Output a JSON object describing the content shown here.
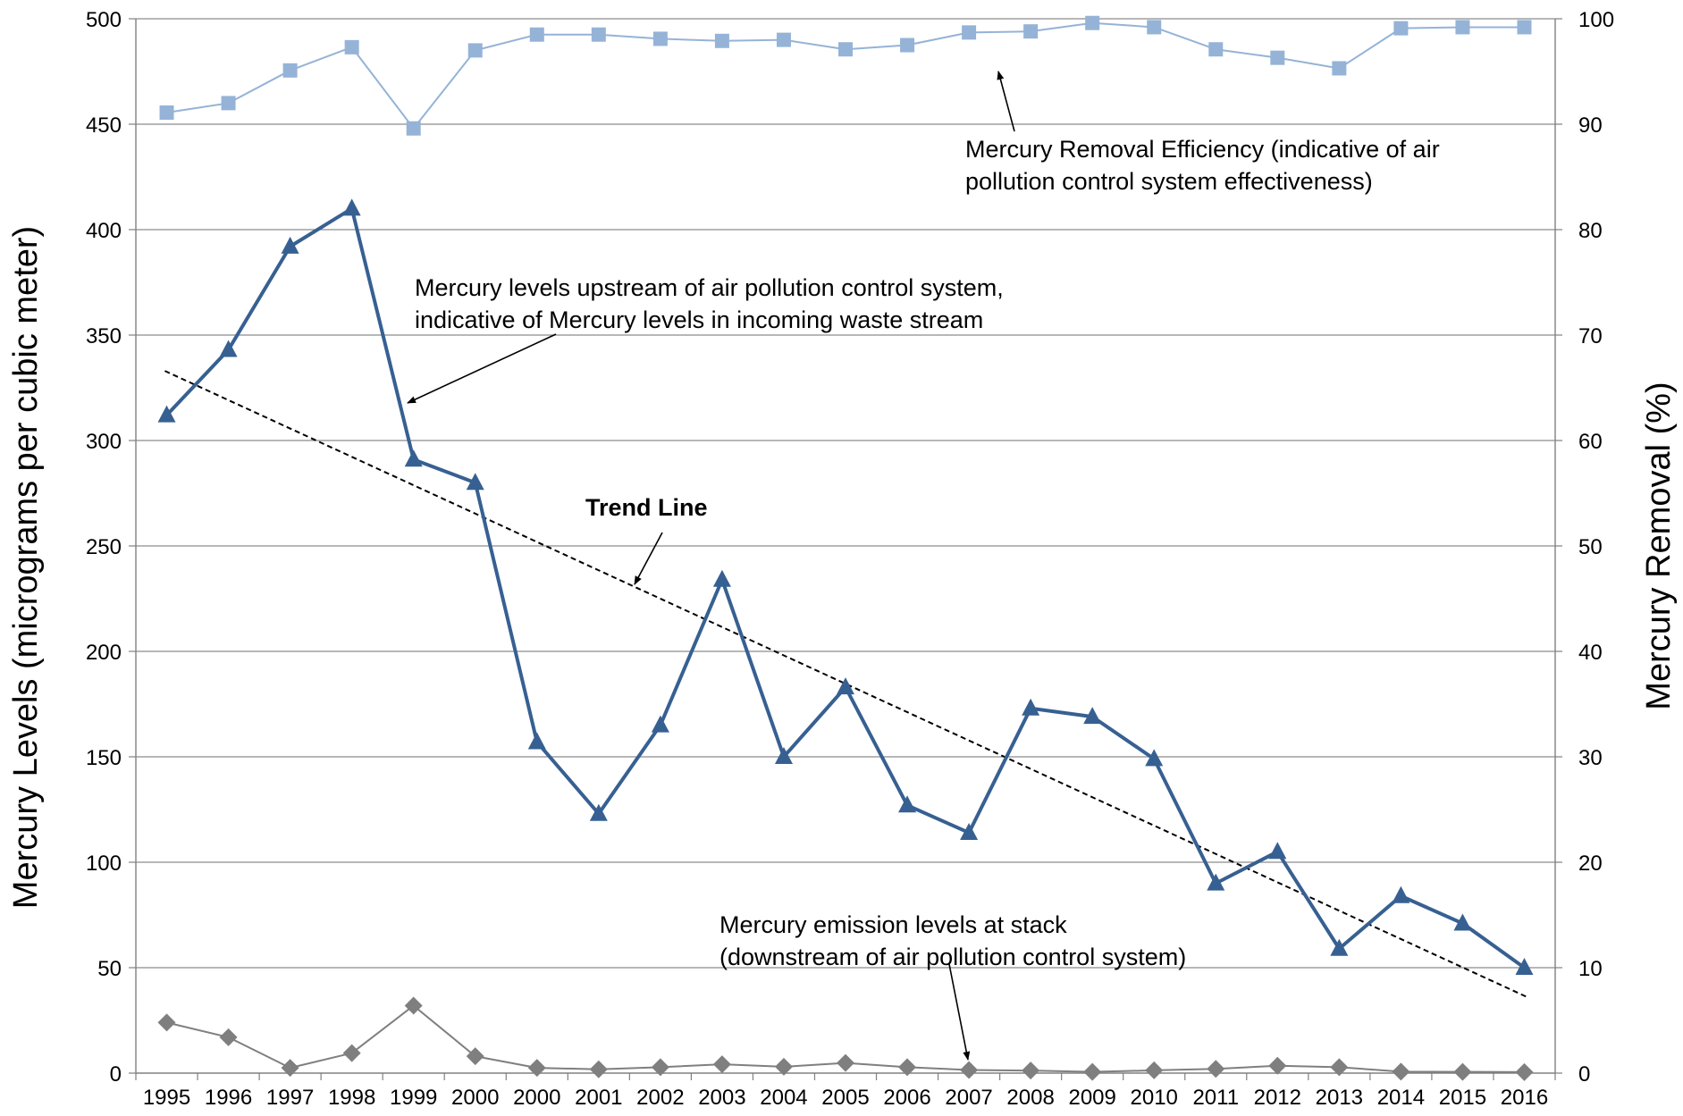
{
  "chart_data": {
    "type": "line",
    "categories": [
      "1995",
      "1996",
      "1997",
      "1998",
      "1999",
      "2000",
      "2000",
      "2001",
      "2002",
      "2003",
      "2004",
      "2005",
      "2006",
      "2007",
      "2008",
      "2009",
      "2010",
      "2011",
      "2012",
      "2013",
      "2014",
      "2015",
      "2016"
    ],
    "y_left": {
      "label": "Mercury Levels (micrograms per cubic meter)",
      "ylim": [
        0,
        500
      ],
      "ticks": [
        0,
        50,
        100,
        150,
        200,
        250,
        300,
        350,
        400,
        450,
        500
      ]
    },
    "y_right": {
      "label": "Mercury Removal (%)",
      "ylim": [
        0,
        100
      ],
      "ticks": [
        0,
        10,
        20,
        30,
        40,
        50,
        60,
        70,
        80,
        90,
        100
      ]
    },
    "grid": true,
    "series": [
      {
        "key": "removal",
        "axis": "right",
        "color": "#95B3D7",
        "marker": "square",
        "values": [
          91.1,
          92.0,
          95.1,
          97.3,
          89.6,
          97.0,
          98.5,
          98.5,
          98.1,
          97.9,
          98.0,
          97.1,
          97.5,
          98.7,
          98.8,
          99.6,
          99.2,
          97.1,
          96.3,
          95.3,
          99.1,
          99.2,
          99.2
        ]
      },
      {
        "key": "upstream",
        "axis": "left",
        "color": "#376092",
        "marker": "triangle",
        "values": [
          312,
          343,
          392,
          410,
          291,
          280,
          157,
          123,
          165,
          234,
          150,
          183,
          127,
          114,
          173,
          169,
          149,
          90,
          105,
          59,
          84,
          71,
          50
        ]
      },
      {
        "key": "stack",
        "axis": "left",
        "color": "#7F7F7F",
        "marker": "diamond",
        "values": [
          24,
          17,
          2.5,
          9.5,
          32,
          8,
          2.5,
          1.8,
          2.8,
          4.2,
          3.0,
          4.8,
          2.8,
          1.5,
          1.2,
          0.6,
          1.3,
          2.0,
          3.5,
          2.8,
          0.7,
          0.6,
          0.5
        ]
      }
    ],
    "trend_line": {
      "axis": "left",
      "style": "dashed",
      "color": "#000000",
      "from": {
        "category_index": 0,
        "value": 333
      },
      "to": {
        "category_index": 22,
        "value": 36
      }
    },
    "annotations": [
      {
        "key": "removal",
        "lines": [
          "Mercury Removal Efficiency (indicative of air",
          "pollution control system effectiveness)"
        ],
        "bold": false
      },
      {
        "key": "upstream",
        "lines": [
          "Mercury  levels upstream of air pollution control system,",
          "indicative of Mercury levels in incoming waste stream"
        ],
        "bold": false
      },
      {
        "key": "trend",
        "lines": [
          "Trend Line"
        ],
        "bold": true
      },
      {
        "key": "stack",
        "lines": [
          "Mercury emission levels at stack",
          "(downstream of air pollution control system)"
        ],
        "bold": false
      }
    ]
  }
}
